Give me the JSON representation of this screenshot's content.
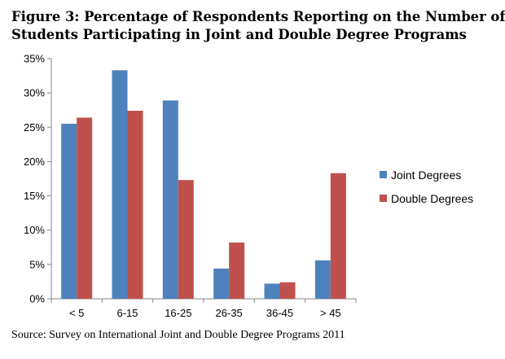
{
  "figure": {
    "title_line1": "Figure 3: Percentage of Respondents Reporting on the Number of",
    "title_line2": "Students Participating in Joint and Double Degree Programs",
    "source": "Source: Survey on International Joint and Double Degree Programs 2011"
  },
  "chart_data": {
    "type": "bar",
    "title": "Figure 3: Percentage of Respondents Reporting on the Number of Students Participating in Joint and Double Degree Programs",
    "categories": [
      "< 5",
      "6-15",
      "16-25",
      "26-35",
      "36-45",
      "> 45"
    ],
    "series": [
      {
        "name": "Joint Degrees",
        "color": "#4f81bd",
        "values": [
          25.5,
          33.3,
          28.9,
          4.4,
          2.2,
          5.6
        ]
      },
      {
        "name": "Double Degrees",
        "color": "#c0504d",
        "values": [
          26.4,
          27.4,
          17.3,
          8.2,
          2.4,
          18.3
        ]
      }
    ],
    "xlabel": "",
    "ylabel": "",
    "ylim": [
      0,
      35
    ],
    "ytick_step": 5,
    "ytick_labels": [
      "0%",
      "5%",
      "10%",
      "15%",
      "20%",
      "25%",
      "30%",
      "35%"
    ],
    "grid": false,
    "legend_position": "right"
  }
}
